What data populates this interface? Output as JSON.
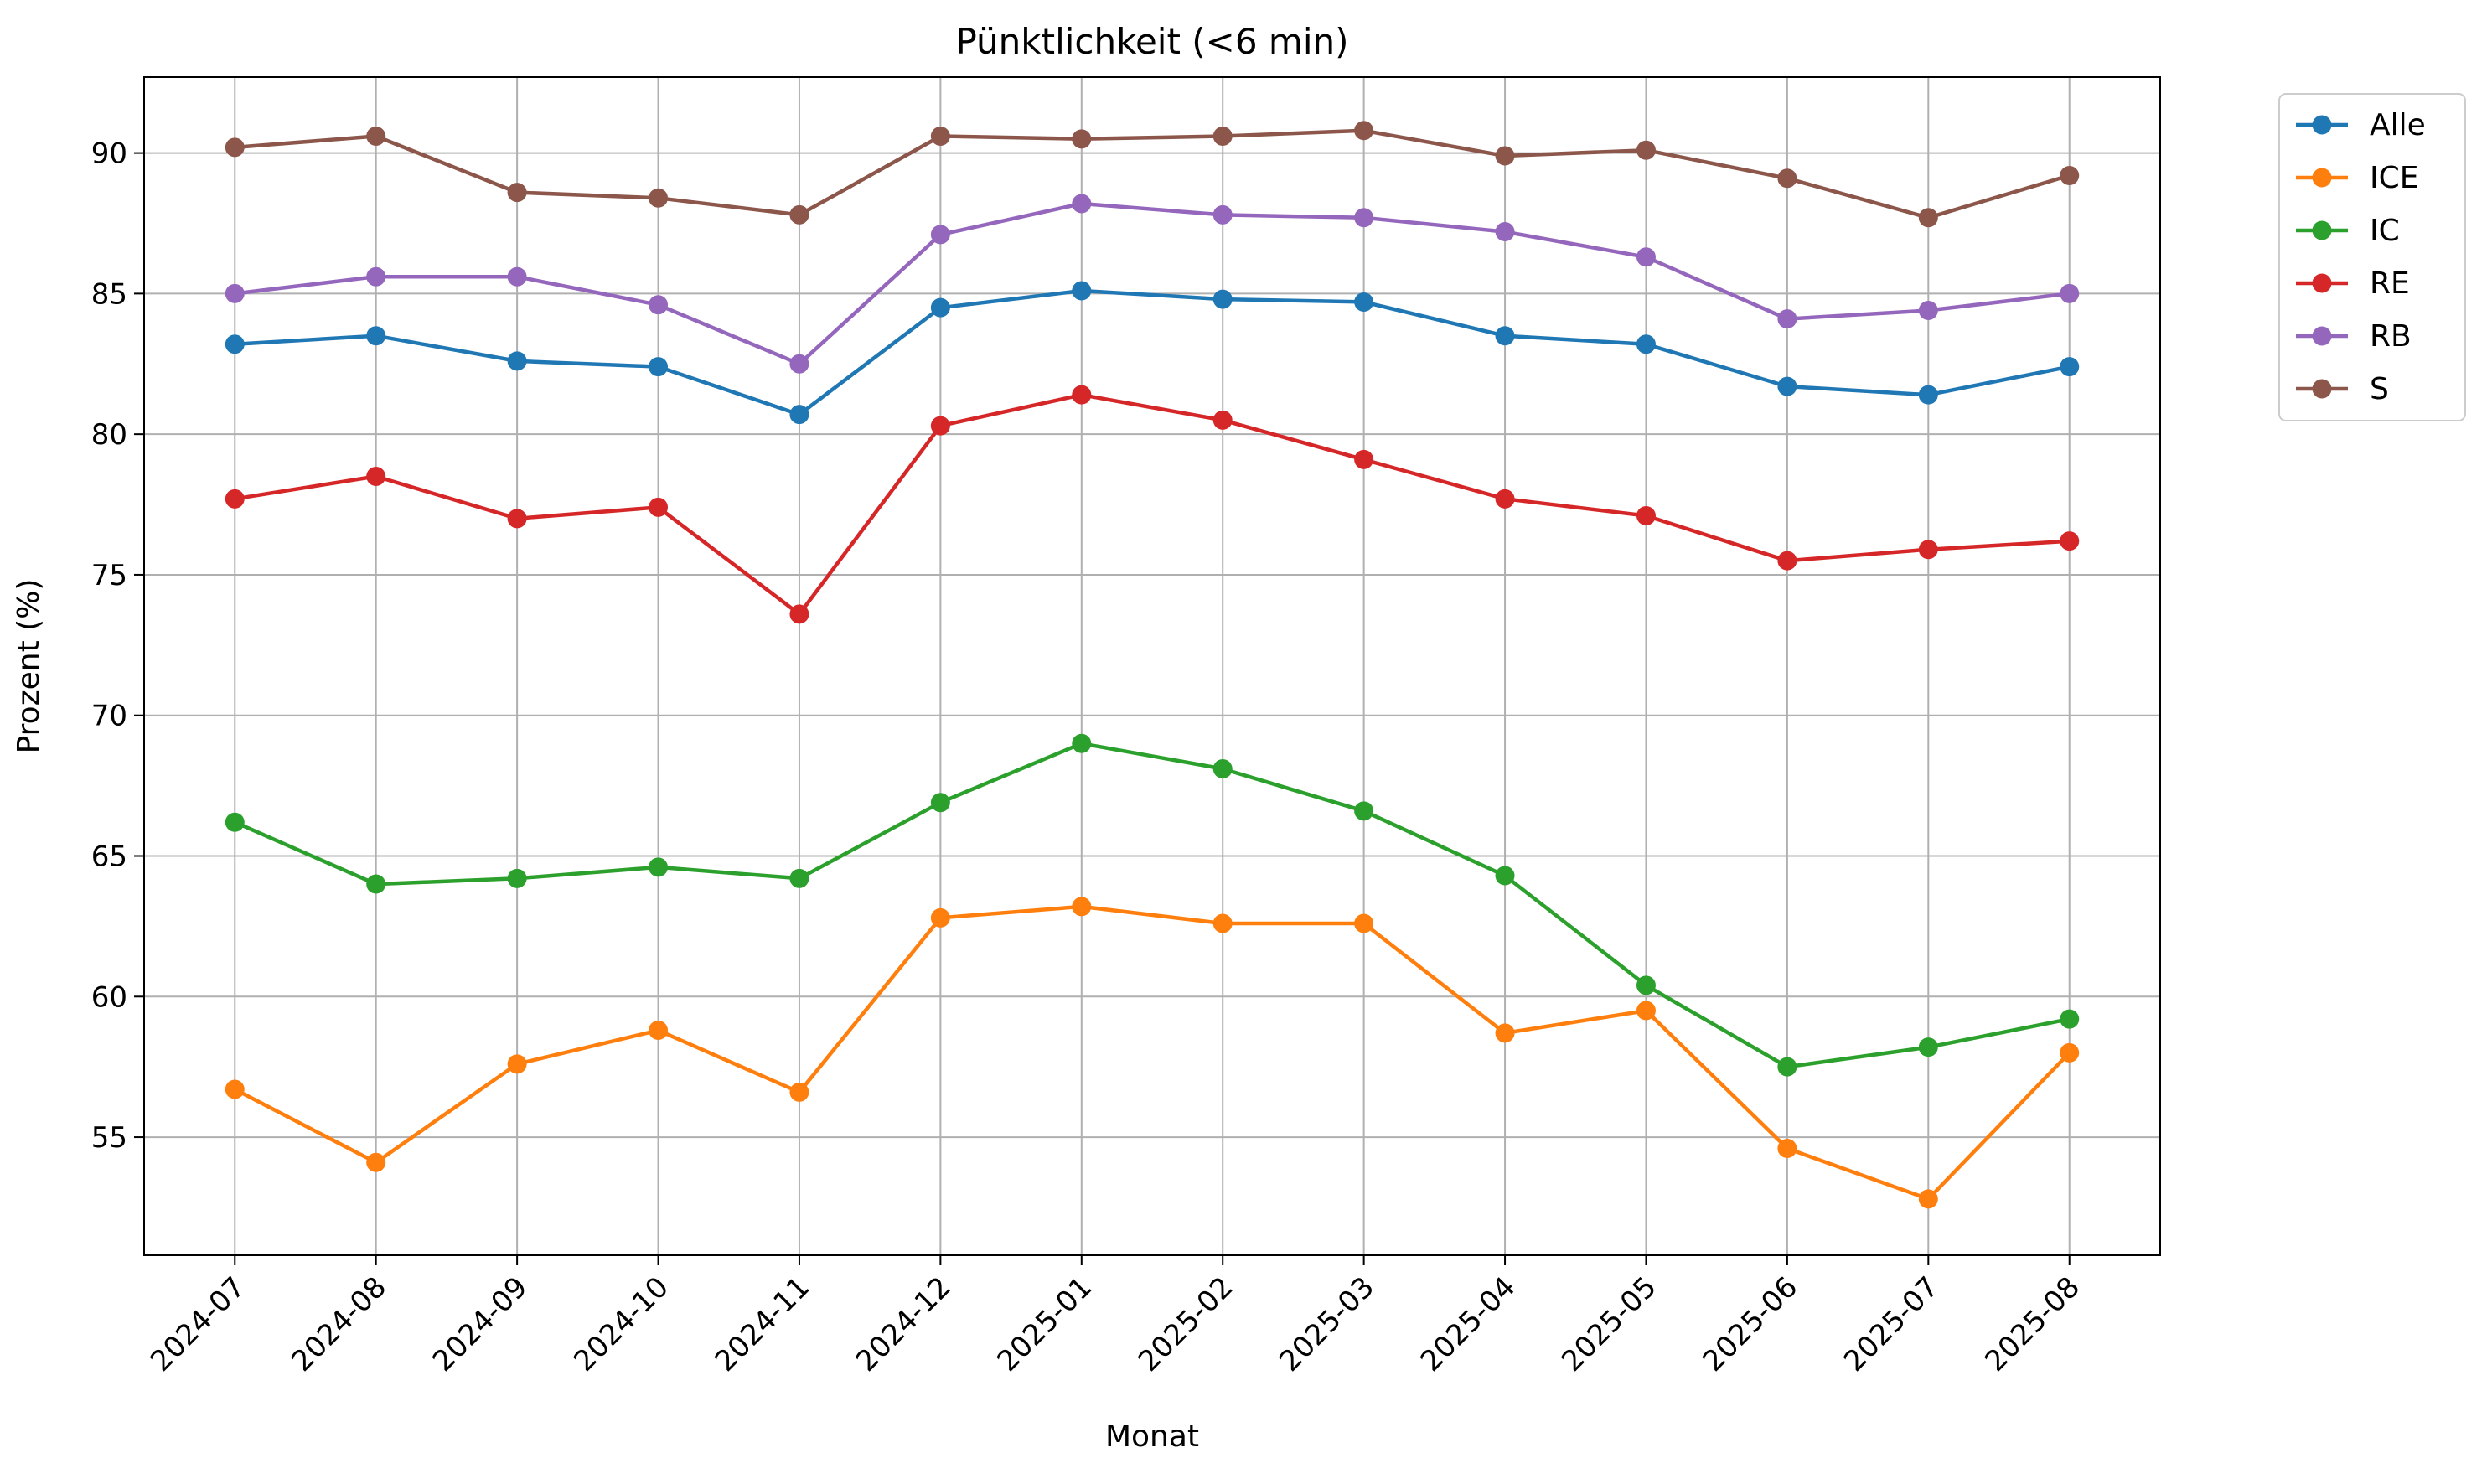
{
  "chart_data": {
    "type": "line",
    "title": "Pünktlichkeit (<6 min)",
    "xlabel": "Monat",
    "ylabel": "Prozent (%)",
    "categories": [
      "2024-07",
      "2024-08",
      "2024-09",
      "2024-10",
      "2024-11",
      "2024-12",
      "2025-01",
      "2025-02",
      "2025-03",
      "2025-04",
      "2025-05",
      "2025-06",
      "2025-07",
      "2025-08"
    ],
    "ylim": [
      50.8,
      92.7
    ],
    "yticks": [
      55,
      60,
      65,
      70,
      75,
      80,
      85,
      90
    ],
    "grid": true,
    "legend_position": "outside-top-right",
    "series": [
      {
        "name": "Alle",
        "color": "#1f77b4",
        "values": [
          83.2,
          83.5,
          82.6,
          82.4,
          80.7,
          84.5,
          85.1,
          84.8,
          84.7,
          83.5,
          83.2,
          81.7,
          81.4,
          82.4
        ]
      },
      {
        "name": "ICE",
        "color": "#ff7f0e",
        "values": [
          56.7,
          54.1,
          57.6,
          58.8,
          56.6,
          62.8,
          63.2,
          62.6,
          62.6,
          58.7,
          59.5,
          54.6,
          52.8,
          58.0
        ]
      },
      {
        "name": "IC",
        "color": "#2ca02c",
        "values": [
          66.2,
          64.0,
          64.2,
          64.6,
          64.2,
          66.9,
          69.0,
          68.1,
          66.6,
          64.3,
          60.4,
          57.5,
          58.2,
          59.2
        ]
      },
      {
        "name": "RE",
        "color": "#d62728",
        "values": [
          77.7,
          78.5,
          77.0,
          77.4,
          73.6,
          80.3,
          81.4,
          80.5,
          79.1,
          77.7,
          77.1,
          75.5,
          75.9,
          76.2
        ]
      },
      {
        "name": "RB",
        "color": "#9467bd",
        "values": [
          85.0,
          85.6,
          85.6,
          84.6,
          82.5,
          87.1,
          88.2,
          87.8,
          87.7,
          87.2,
          86.3,
          84.1,
          84.4,
          85.0
        ]
      },
      {
        "name": "S",
        "color": "#8c564b",
        "values": [
          90.2,
          90.6,
          88.6,
          88.4,
          87.8,
          90.6,
          90.5,
          90.6,
          90.8,
          89.9,
          90.1,
          89.1,
          87.7,
          89.2
        ]
      }
    ]
  }
}
